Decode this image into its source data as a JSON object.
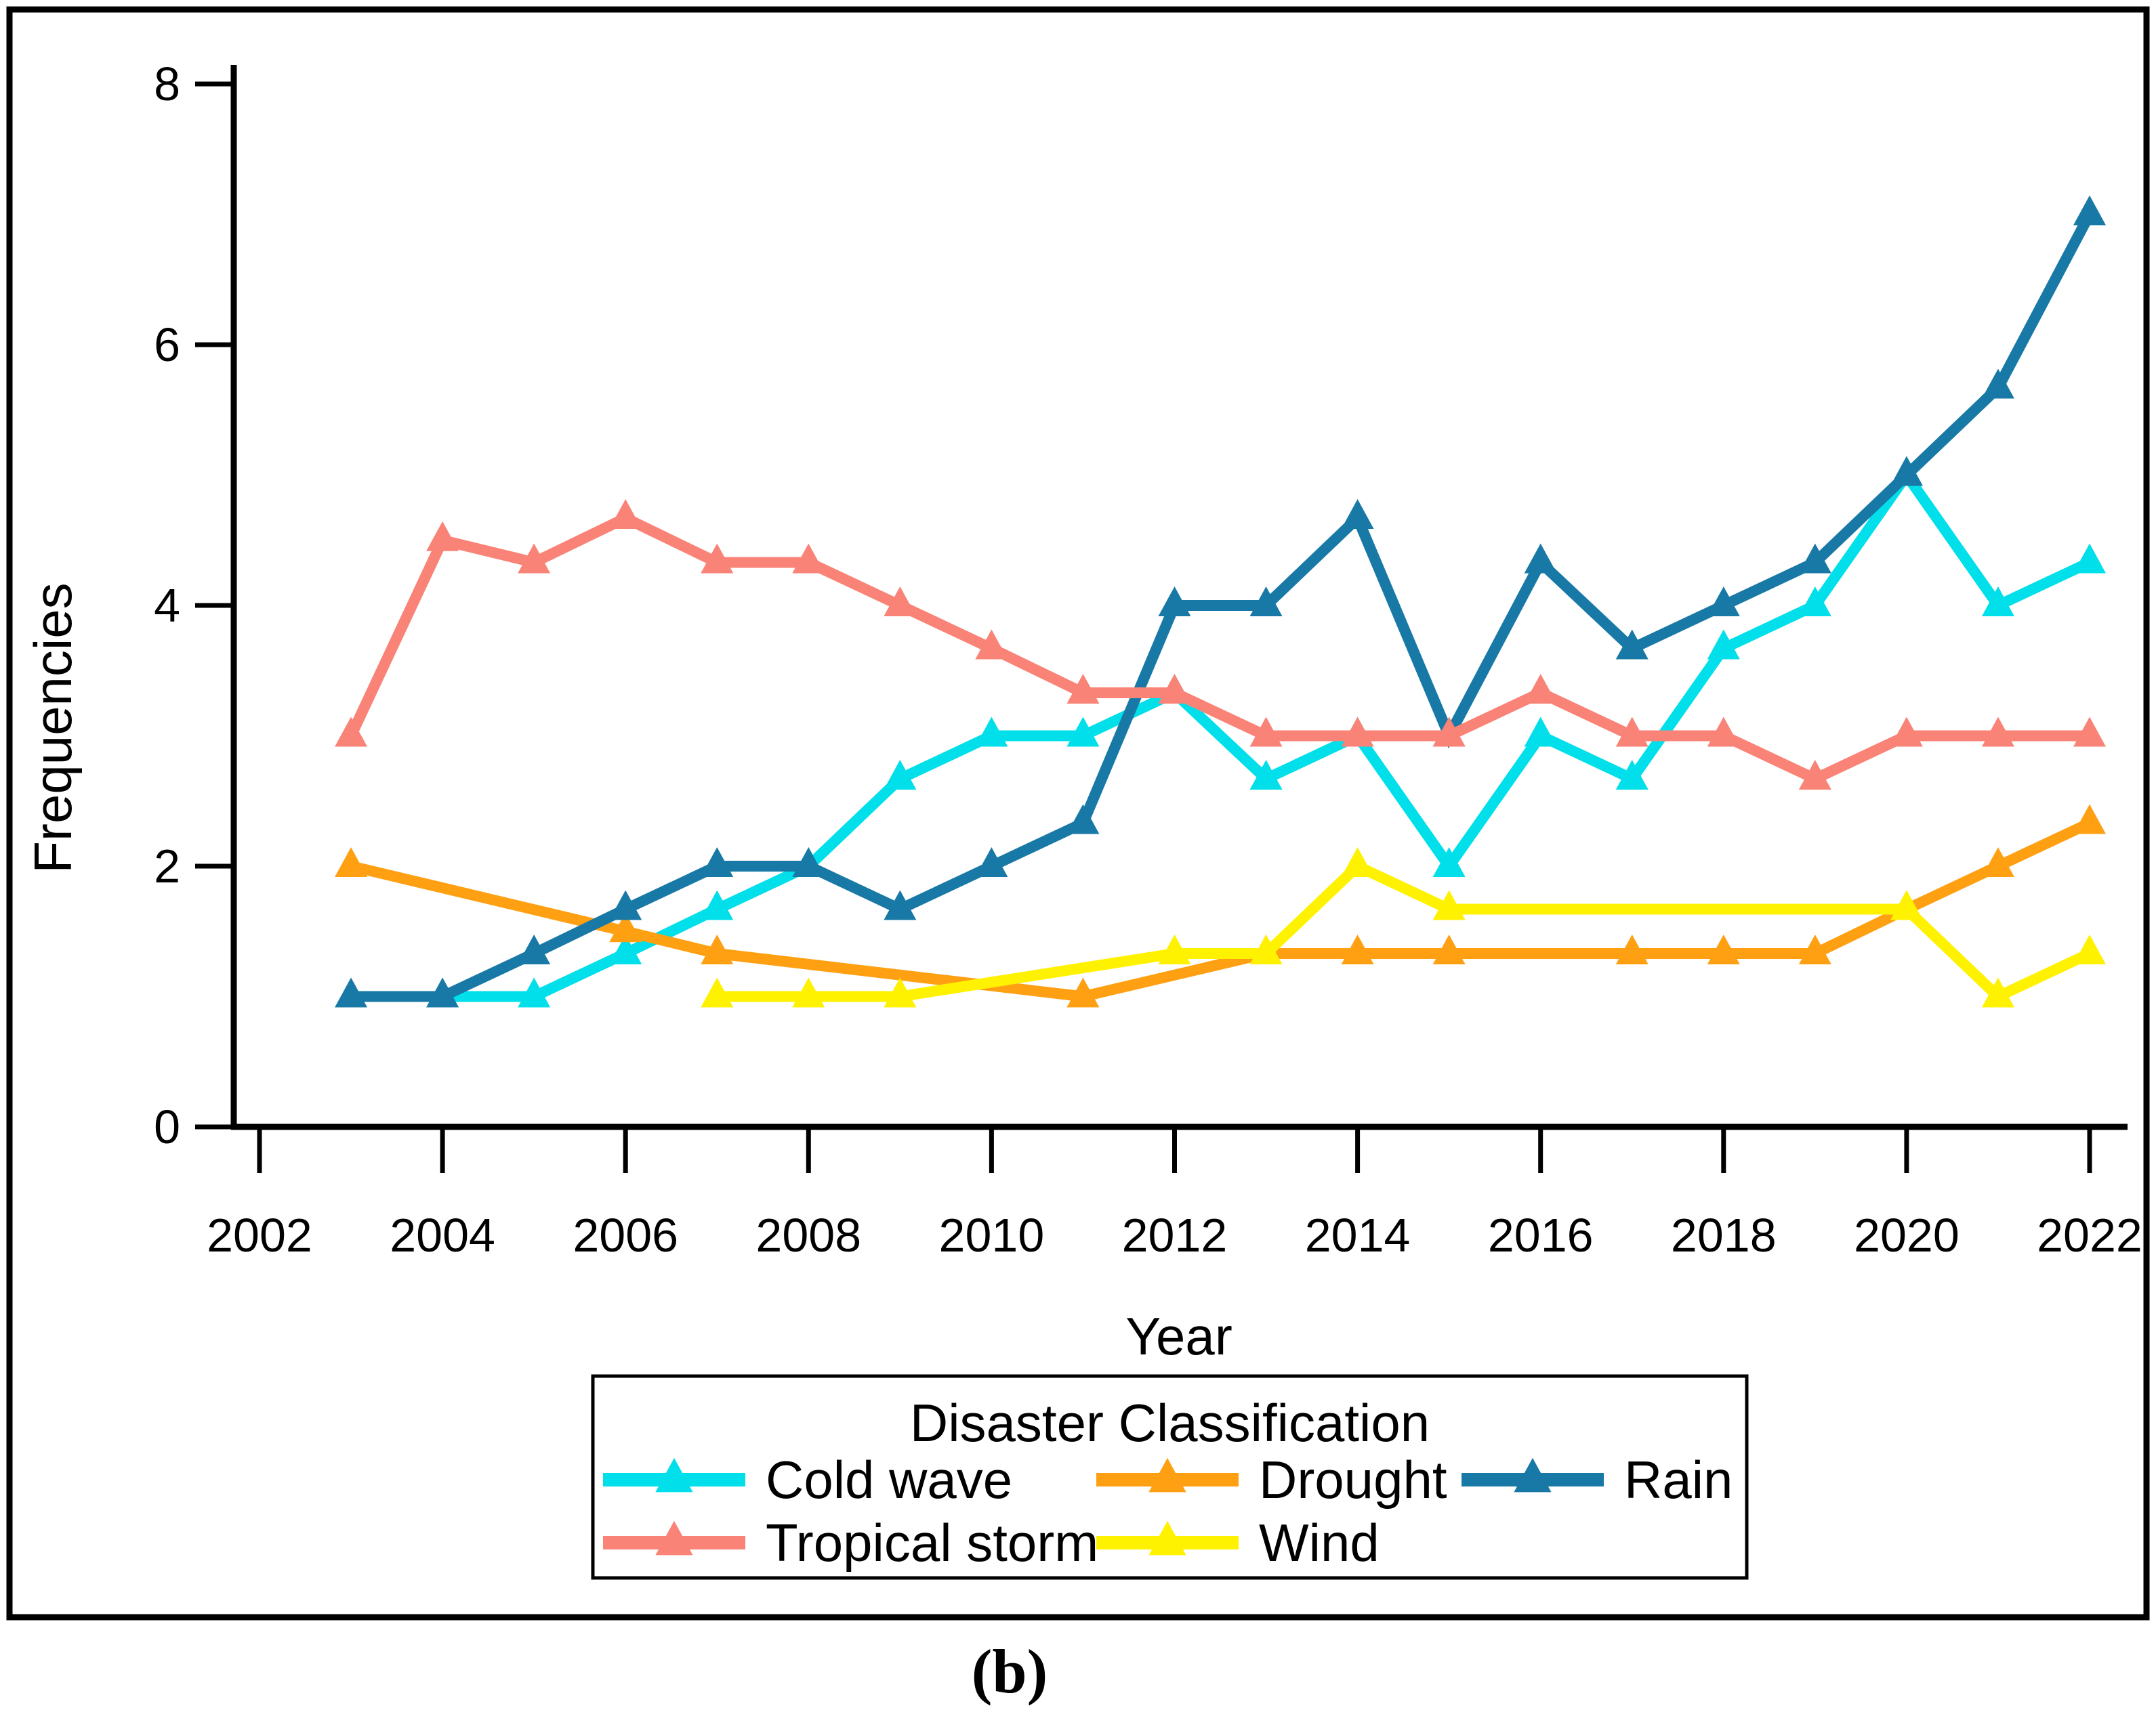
{
  "figure": {
    "caption": "(b)",
    "background": "#ffffff",
    "border_color": "#000000"
  },
  "axes": {
    "x": {
      "title": "Year",
      "tick_labels": [
        "2002",
        "2004",
        "2006",
        "2008",
        "2010",
        "2012",
        "2014",
        "2016",
        "2018",
        "2020",
        "2022"
      ],
      "range": [
        2002,
        2022
      ]
    },
    "y": {
      "title": "Frequencies",
      "tick_labels": [
        "0",
        "2",
        "4",
        "6",
        "8"
      ],
      "range": [
        0,
        8
      ]
    }
  },
  "legend": {
    "title": "Disaster Classification",
    "entries": [
      "Cold wave",
      "Drought",
      "Rain",
      "Tropical storm",
      "Wind"
    ]
  },
  "chart_data": {
    "type": "line",
    "title": "",
    "xlabel": "Year",
    "ylabel": "Frequencies",
    "x_ticks": [
      2002,
      2004,
      2006,
      2008,
      2010,
      2012,
      2014,
      2016,
      2018,
      2020,
      2022
    ],
    "y_ticks": [
      0,
      2,
      4,
      6,
      8
    ],
    "xlim": [
      2002,
      2022
    ],
    "ylim": [
      0,
      8
    ],
    "grid": false,
    "legend_position": "bottom",
    "marker": "triangle-up",
    "series": [
      {
        "name": "Cold wave",
        "color": "#00DFEA",
        "points": [
          [
            2004,
            1
          ],
          [
            2005,
            1
          ],
          [
            2006,
            1.33
          ],
          [
            2007,
            1.67
          ],
          [
            2008,
            2
          ],
          [
            2009,
            2.67
          ],
          [
            2010,
            3
          ],
          [
            2011,
            3
          ],
          [
            2012,
            3.33
          ],
          [
            2013,
            2.67
          ],
          [
            2014,
            3
          ],
          [
            2015,
            2
          ],
          [
            2016,
            3
          ],
          [
            2017,
            2.67
          ],
          [
            2018,
            3.67
          ],
          [
            2019,
            4
          ],
          [
            2020,
            5
          ],
          [
            2021,
            4
          ],
          [
            2022,
            4.33
          ]
        ]
      },
      {
        "name": "Drought",
        "color": "#FFA013",
        "points": [
          [
            2003,
            2
          ],
          [
            2006,
            1.5
          ],
          [
            2007,
            1.33
          ],
          [
            2011,
            1
          ],
          [
            2013,
            1.33
          ],
          [
            2014,
            1.33
          ],
          [
            2015,
            1.33
          ],
          [
            2017,
            1.33
          ],
          [
            2018,
            1.33
          ],
          [
            2019,
            1.33
          ],
          [
            2020,
            1.67
          ],
          [
            2021,
            2
          ],
          [
            2022,
            2.33
          ]
        ]
      },
      {
        "name": "Rain",
        "color": "#1879A6",
        "points": [
          [
            2003,
            1
          ],
          [
            2004,
            1
          ],
          [
            2005,
            1.33
          ],
          [
            2006,
            1.67
          ],
          [
            2007,
            2
          ],
          [
            2008,
            2
          ],
          [
            2009,
            1.67
          ],
          [
            2010,
            2
          ],
          [
            2011,
            2.33
          ],
          [
            2012,
            4
          ],
          [
            2013,
            4
          ],
          [
            2014,
            4.67
          ],
          [
            2015,
            3
          ],
          [
            2016,
            4.33
          ],
          [
            2017,
            3.67
          ],
          [
            2018,
            4
          ],
          [
            2019,
            4.33
          ],
          [
            2020,
            5
          ],
          [
            2021,
            5.67
          ],
          [
            2022,
            7
          ]
        ]
      },
      {
        "name": "Tropical storm",
        "color": "#FA8377",
        "points": [
          [
            2003,
            3
          ],
          [
            2004,
            4.5
          ],
          [
            2005,
            4.33
          ],
          [
            2006,
            4.67
          ],
          [
            2007,
            4.33
          ],
          [
            2008,
            4.33
          ],
          [
            2009,
            4
          ],
          [
            2010,
            3.67
          ],
          [
            2011,
            3.33
          ],
          [
            2012,
            3.33
          ],
          [
            2013,
            3
          ],
          [
            2014,
            3
          ],
          [
            2015,
            3
          ],
          [
            2016,
            3.33
          ],
          [
            2017,
            3
          ],
          [
            2018,
            3
          ],
          [
            2019,
            2.67
          ],
          [
            2020,
            3
          ],
          [
            2021,
            3
          ],
          [
            2022,
            3
          ]
        ]
      },
      {
        "name": "Wind",
        "color": "#FFF200",
        "points": [
          [
            2007,
            1
          ],
          [
            2008,
            1
          ],
          [
            2009,
            1
          ],
          [
            2012,
            1.33
          ],
          [
            2013,
            1.33
          ],
          [
            2014,
            2
          ],
          [
            2015,
            1.67
          ],
          [
            2020,
            1.67
          ],
          [
            2021,
            1
          ],
          [
            2022,
            1.33
          ]
        ]
      }
    ]
  }
}
